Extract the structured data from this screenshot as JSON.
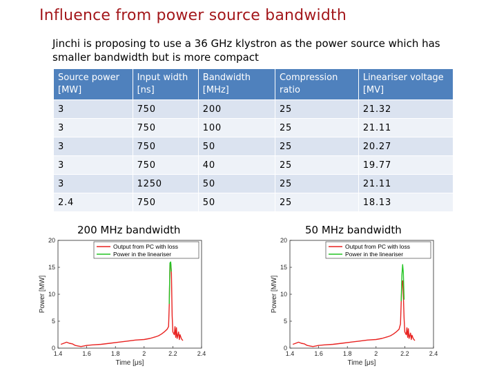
{
  "slide": {
    "title": "Influence from power source bandwidth",
    "subtitle": "Jinchi is proposing to use a 36 GHz klystron as the power source which has smaller bandwidth but is more compact",
    "colors": {
      "title": "#a3171b",
      "header_bg": "#4f81bd",
      "row_dark": "#dbe3f0",
      "row_light": "#eef2f8"
    }
  },
  "table": {
    "headers": [
      "Source power [MW]",
      "Input width [ns]",
      "Bandwidth [MHz]",
      "Compression ratio",
      "Lineariser voltage [MV]"
    ],
    "rows": [
      [
        "3",
        "750",
        "200",
        "25",
        "21.32"
      ],
      [
        "3",
        "750",
        "100",
        "25",
        "21.11"
      ],
      [
        "3",
        "750",
        "50",
        "25",
        "20.27"
      ],
      [
        "3",
        "750",
        "40",
        "25",
        "19.77"
      ],
      [
        "3",
        "1250",
        "50",
        "25",
        "21.11"
      ],
      [
        "2.4",
        "750",
        "50",
        "25",
        "18.13"
      ]
    ]
  },
  "plots": [
    {
      "caption": "200 MHz bandwidth"
    },
    {
      "caption": "50 MHz bandwidth"
    }
  ],
  "chart_data": [
    {
      "type": "line",
      "xlabel": "Time [μs]",
      "ylabel": "Power [MW]",
      "xlim": [
        1.4,
        2.4
      ],
      "ylim": [
        0,
        20
      ],
      "xticks": [
        "1.4",
        "1.6",
        "1.8",
        "2",
        "2.2",
        "2.4"
      ],
      "yticks": [
        "0",
        "5",
        "10",
        "15",
        "20"
      ],
      "legend_position": "top-right",
      "series": [
        {
          "name": "Output from PC with loss",
          "color": "#e8211f",
          "x": [
            1.42,
            1.44,
            1.46,
            1.48,
            1.5,
            1.52,
            1.54,
            1.56,
            1.58,
            1.6,
            1.64,
            1.7,
            1.76,
            1.82,
            1.88,
            1.94,
            2.0,
            2.04,
            2.08,
            2.1,
            2.12,
            2.14,
            2.16,
            2.17,
            2.175,
            2.18,
            2.185,
            2.19,
            2.195,
            2.2,
            2.21,
            2.215,
            2.22,
            2.225,
            2.23,
            2.24,
            2.245,
            2.25,
            2.26,
            2.27
          ],
          "y": [
            0.7,
            0.9,
            1.1,
            0.9,
            0.8,
            0.5,
            0.4,
            0.3,
            0.4,
            0.5,
            0.6,
            0.7,
            0.9,
            1.1,
            1.3,
            1.5,
            1.6,
            1.8,
            2.1,
            2.3,
            2.6,
            3.0,
            3.5,
            4.0,
            8.0,
            15.6,
            15.8,
            14.0,
            6.0,
            3.0,
            2.5,
            4.0,
            2.0,
            3.8,
            1.8,
            3.0,
            1.6,
            2.5,
            1.7,
            1.4
          ]
        },
        {
          "name": "Power in the lineariser",
          "color": "#22c422",
          "x": [
            2.175,
            2.18,
            2.185,
            2.19
          ],
          "y": [
            8.2,
            15.8,
            16.0,
            14.2
          ]
        }
      ]
    },
    {
      "type": "line",
      "xlabel": "Time [μs]",
      "ylabel": "Power [MW]",
      "xlim": [
        1.4,
        2.4
      ],
      "ylim": [
        0,
        20
      ],
      "xticks": [
        "1.4",
        "1.6",
        "1.8",
        "2",
        "2.2",
        "2.4"
      ],
      "yticks": [
        "0",
        "5",
        "10",
        "15",
        "20"
      ],
      "legend_position": "top-right",
      "series": [
        {
          "name": "Output from PC with loss",
          "color": "#e8211f",
          "x": [
            1.42,
            1.44,
            1.46,
            1.48,
            1.5,
            1.52,
            1.54,
            1.56,
            1.58,
            1.6,
            1.64,
            1.7,
            1.76,
            1.82,
            1.88,
            1.94,
            2.0,
            2.04,
            2.08,
            2.1,
            2.12,
            2.14,
            2.16,
            2.17,
            2.175,
            2.18,
            2.185,
            2.19,
            2.195,
            2.2,
            2.21,
            2.215,
            2.22,
            2.225,
            2.23,
            2.24,
            2.245,
            2.25,
            2.26,
            2.27
          ],
          "y": [
            0.7,
            0.9,
            1.1,
            0.9,
            0.8,
            0.5,
            0.4,
            0.3,
            0.4,
            0.5,
            0.6,
            0.7,
            0.9,
            1.1,
            1.3,
            1.5,
            1.6,
            1.8,
            2.1,
            2.3,
            2.6,
            3.0,
            3.5,
            4.5,
            8.5,
            12.0,
            12.5,
            10.0,
            5.5,
            3.0,
            2.5,
            3.8,
            2.0,
            3.6,
            1.8,
            2.8,
            1.6,
            2.4,
            1.7,
            1.4
          ]
        },
        {
          "name": "Power in the lineariser",
          "color": "#22c422",
          "x": [
            2.175,
            2.18,
            2.185,
            2.19,
            2.195
          ],
          "y": [
            8.7,
            13.5,
            15.5,
            14.0,
            9.0
          ]
        }
      ]
    }
  ]
}
